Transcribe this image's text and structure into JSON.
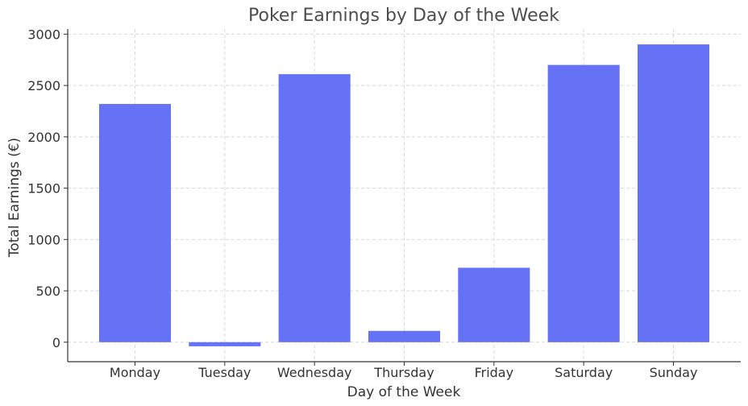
{
  "chart_data": {
    "type": "bar",
    "title": "Poker Earnings by Day of the Week",
    "xlabel": "Day of the Week",
    "ylabel": "Total Earnings (€)",
    "categories": [
      "Monday",
      "Tuesday",
      "Wednesday",
      "Thursday",
      "Friday",
      "Saturday",
      "Sunday"
    ],
    "values": [
      2320,
      -40,
      2610,
      110,
      725,
      2700,
      2900
    ],
    "yticks": [
      0,
      500,
      1000,
      1500,
      2000,
      2500,
      3000
    ],
    "ylim": [
      -190,
      3050
    ],
    "grid": true,
    "bar_color": "#6672f5"
  }
}
